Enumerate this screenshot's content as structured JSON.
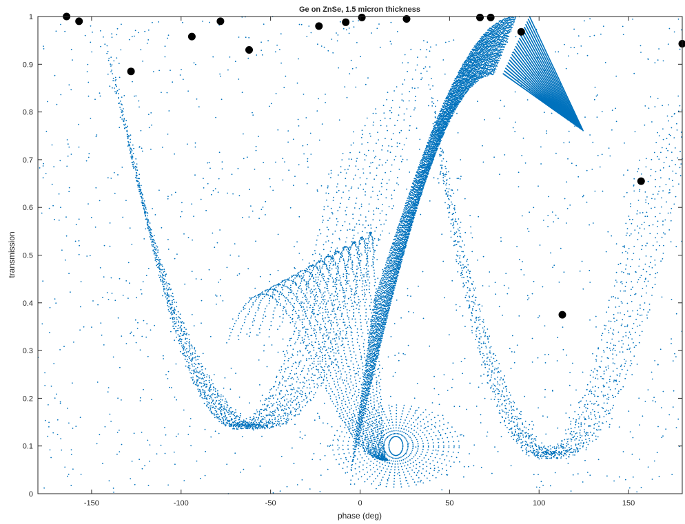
{
  "chart_data": {
    "type": "scatter",
    "title": "Ge on ZnSe, 1.5 micron thickness",
    "xlabel": "phase (deg)",
    "ylabel": "transmission",
    "xlim": [
      -180,
      180
    ],
    "ylim": [
      0,
      1
    ],
    "xticks": [
      -150,
      -100,
      -50,
      0,
      50,
      100,
      150
    ],
    "xtick_labels": [
      "-150",
      "-100",
      "-50",
      "0",
      "50",
      "100",
      "150"
    ],
    "yticks": [
      0,
      0.1,
      0.2,
      0.3,
      0.4,
      0.5,
      0.6,
      0.7,
      0.8,
      0.9,
      1
    ],
    "ytick_labels": [
      "0",
      "0.1",
      "0.2",
      "0.3",
      "0.4",
      "0.5",
      "0.6",
      "0.7",
      "0.8",
      "0.9",
      "1"
    ],
    "grid": false,
    "colors": {
      "scatter": "#0072BD",
      "highlight": "#000000",
      "axes": "#262626"
    },
    "series": [
      {
        "marker": "small-dot",
        "color": "#0072BD",
        "description_free": true
      },
      {
        "marker": "large-filled-circle",
        "color": "#000000",
        "points": [
          [
            -164,
            1.0
          ],
          [
            -157,
            0.99
          ],
          [
            -128,
            0.885
          ],
          [
            -94,
            0.958
          ],
          [
            -78,
            0.99
          ],
          [
            -62,
            0.93
          ],
          [
            -23,
            0.98
          ],
          [
            -8,
            0.988
          ],
          [
            1,
            0.998
          ],
          [
            26,
            0.995
          ],
          [
            67,
            0.998
          ],
          [
            73,
            0.998
          ],
          [
            90,
            0.968
          ],
          [
            113,
            0.375
          ],
          [
            157,
            0.655
          ],
          [
            180,
            0.943
          ]
        ]
      }
    ]
  }
}
